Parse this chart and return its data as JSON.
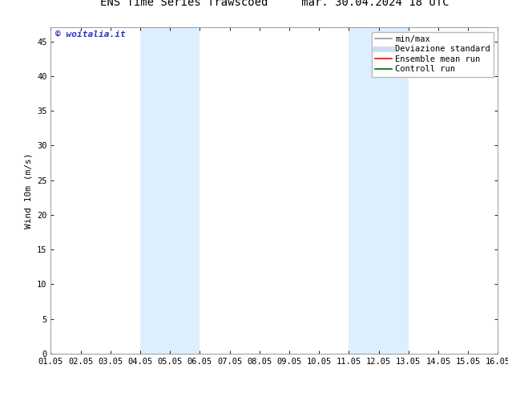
{
  "title_left": "ENS Time Series Trawscoed",
  "title_right": "mar. 30.04.2024 18 UTC",
  "ylabel": "Wind 10m (m/s)",
  "watermark": "© woitalia.it",
  "watermark_color": "#3333cc",
  "background_color": "#ffffff",
  "plot_bg_color": "#ffffff",
  "xlim_start": 0,
  "xlim_end": 15,
  "ylim": [
    0,
    47
  ],
  "yticks": [
    0,
    5,
    10,
    15,
    20,
    25,
    30,
    35,
    40,
    45
  ],
  "xtick_labels": [
    "01.05",
    "02.05",
    "03.05",
    "04.05",
    "05.05",
    "06.05",
    "07.05",
    "08.05",
    "09.05",
    "10.05",
    "11.05",
    "12.05",
    "13.05",
    "14.05",
    "15.05",
    "16.05"
  ],
  "shaded_bands": [
    {
      "x_start": 3,
      "x_end": 5,
      "color": "#ddeeff"
    },
    {
      "x_start": 10,
      "x_end": 12,
      "color": "#ddeeff"
    }
  ],
  "legend_entries": [
    {
      "label": "min/max",
      "color": "#999999",
      "lw": 1.2,
      "ls": "-"
    },
    {
      "label": "Deviazione standard",
      "color": "#ccddf0",
      "lw": 5,
      "ls": "-"
    },
    {
      "label": "Ensemble mean run",
      "color": "#ff0000",
      "lw": 1.2,
      "ls": "-"
    },
    {
      "label": "Controll run",
      "color": "#006600",
      "lw": 1.2,
      "ls": "-"
    }
  ],
  "title_fontsize": 10,
  "axis_label_fontsize": 8,
  "tick_fontsize": 7.5,
  "legend_fontsize": 7.5,
  "watermark_fontsize": 8
}
